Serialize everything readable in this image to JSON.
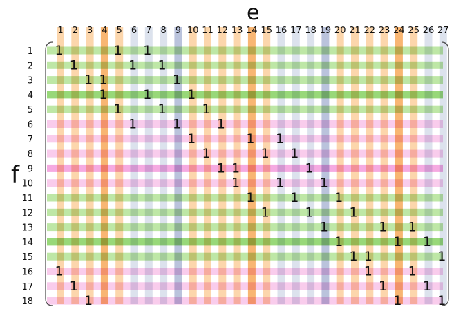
{
  "axis_labels": {
    "columns": "e",
    "rows": "f"
  },
  "column_labels": [
    "1",
    "2",
    "3",
    "4",
    "5",
    "6",
    "7",
    "8",
    "9",
    "10",
    "11",
    "12",
    "13",
    "14",
    "15",
    "16",
    "17",
    "18",
    "19",
    "20",
    "21",
    "22",
    "23",
    "24",
    "25",
    "26",
    "27"
  ],
  "row_labels": [
    "1",
    "2",
    "3",
    "4",
    "5",
    "6",
    "7",
    "8",
    "9",
    "10",
    "11",
    "12",
    "13",
    "14",
    "15",
    "16",
    "17",
    "18"
  ],
  "column_color_groups": [
    "orange",
    "orange",
    "orange",
    "orange-strong",
    "orange",
    "blue",
    "blue",
    "blue",
    "blue-strong",
    "orange",
    "orange",
    "orange",
    "orange",
    "orange-strong",
    "orange",
    "blue",
    "blue",
    "blue",
    "blue-strong",
    "orange",
    "orange",
    "orange",
    "orange",
    "orange-strong",
    "orange",
    "blue",
    "blue"
  ],
  "row_color_groups": [
    "green",
    "green",
    "green",
    "green-strong",
    "green",
    "pink",
    "pink",
    "pink",
    "pink-strong",
    "pink",
    "green",
    "green",
    "green",
    "green-strong",
    "green",
    "pink",
    "pink",
    "pink"
  ],
  "colors": {
    "orange": "#fbcf9e",
    "orange-strong": "#f7a95a",
    "blue": "#d6ddea",
    "blue-strong": "#aeb9d6",
    "green": "#b3e396",
    "green-strong": "#86d161",
    "pink": "#f8c3e9",
    "pink-strong": "#f39bdc",
    "text": "#111111",
    "bracket": "#444444"
  },
  "entry_value": "1",
  "entries": [
    [
      1,
      1
    ],
    [
      1,
      5
    ],
    [
      1,
      7
    ],
    [
      2,
      2
    ],
    [
      2,
      6
    ],
    [
      2,
      8
    ],
    [
      3,
      3
    ],
    [
      3,
      4
    ],
    [
      3,
      9
    ],
    [
      4,
      4
    ],
    [
      4,
      7
    ],
    [
      4,
      10
    ],
    [
      5,
      5
    ],
    [
      5,
      8
    ],
    [
      5,
      11
    ],
    [
      6,
      6
    ],
    [
      6,
      9
    ],
    [
      6,
      12
    ],
    [
      7,
      10
    ],
    [
      7,
      14
    ],
    [
      7,
      16
    ],
    [
      8,
      11
    ],
    [
      8,
      15
    ],
    [
      8,
      17
    ],
    [
      9,
      12
    ],
    [
      9,
      13
    ],
    [
      9,
      18
    ],
    [
      10,
      13
    ],
    [
      10,
      16
    ],
    [
      10,
      19
    ],
    [
      11,
      14
    ],
    [
      11,
      17
    ],
    [
      11,
      20
    ],
    [
      12,
      15
    ],
    [
      12,
      18
    ],
    [
      12,
      21
    ],
    [
      13,
      19
    ],
    [
      13,
      23
    ],
    [
      13,
      25
    ],
    [
      14,
      20
    ],
    [
      14,
      24
    ],
    [
      14,
      26
    ],
    [
      15,
      21
    ],
    [
      15,
      22
    ],
    [
      15,
      27
    ],
    [
      16,
      1
    ],
    [
      16,
      22
    ],
    [
      16,
      25
    ],
    [
      17,
      2
    ],
    [
      17,
      23
    ],
    [
      17,
      26
    ],
    [
      18,
      3
    ],
    [
      18,
      24
    ],
    [
      18,
      27
    ]
  ]
}
